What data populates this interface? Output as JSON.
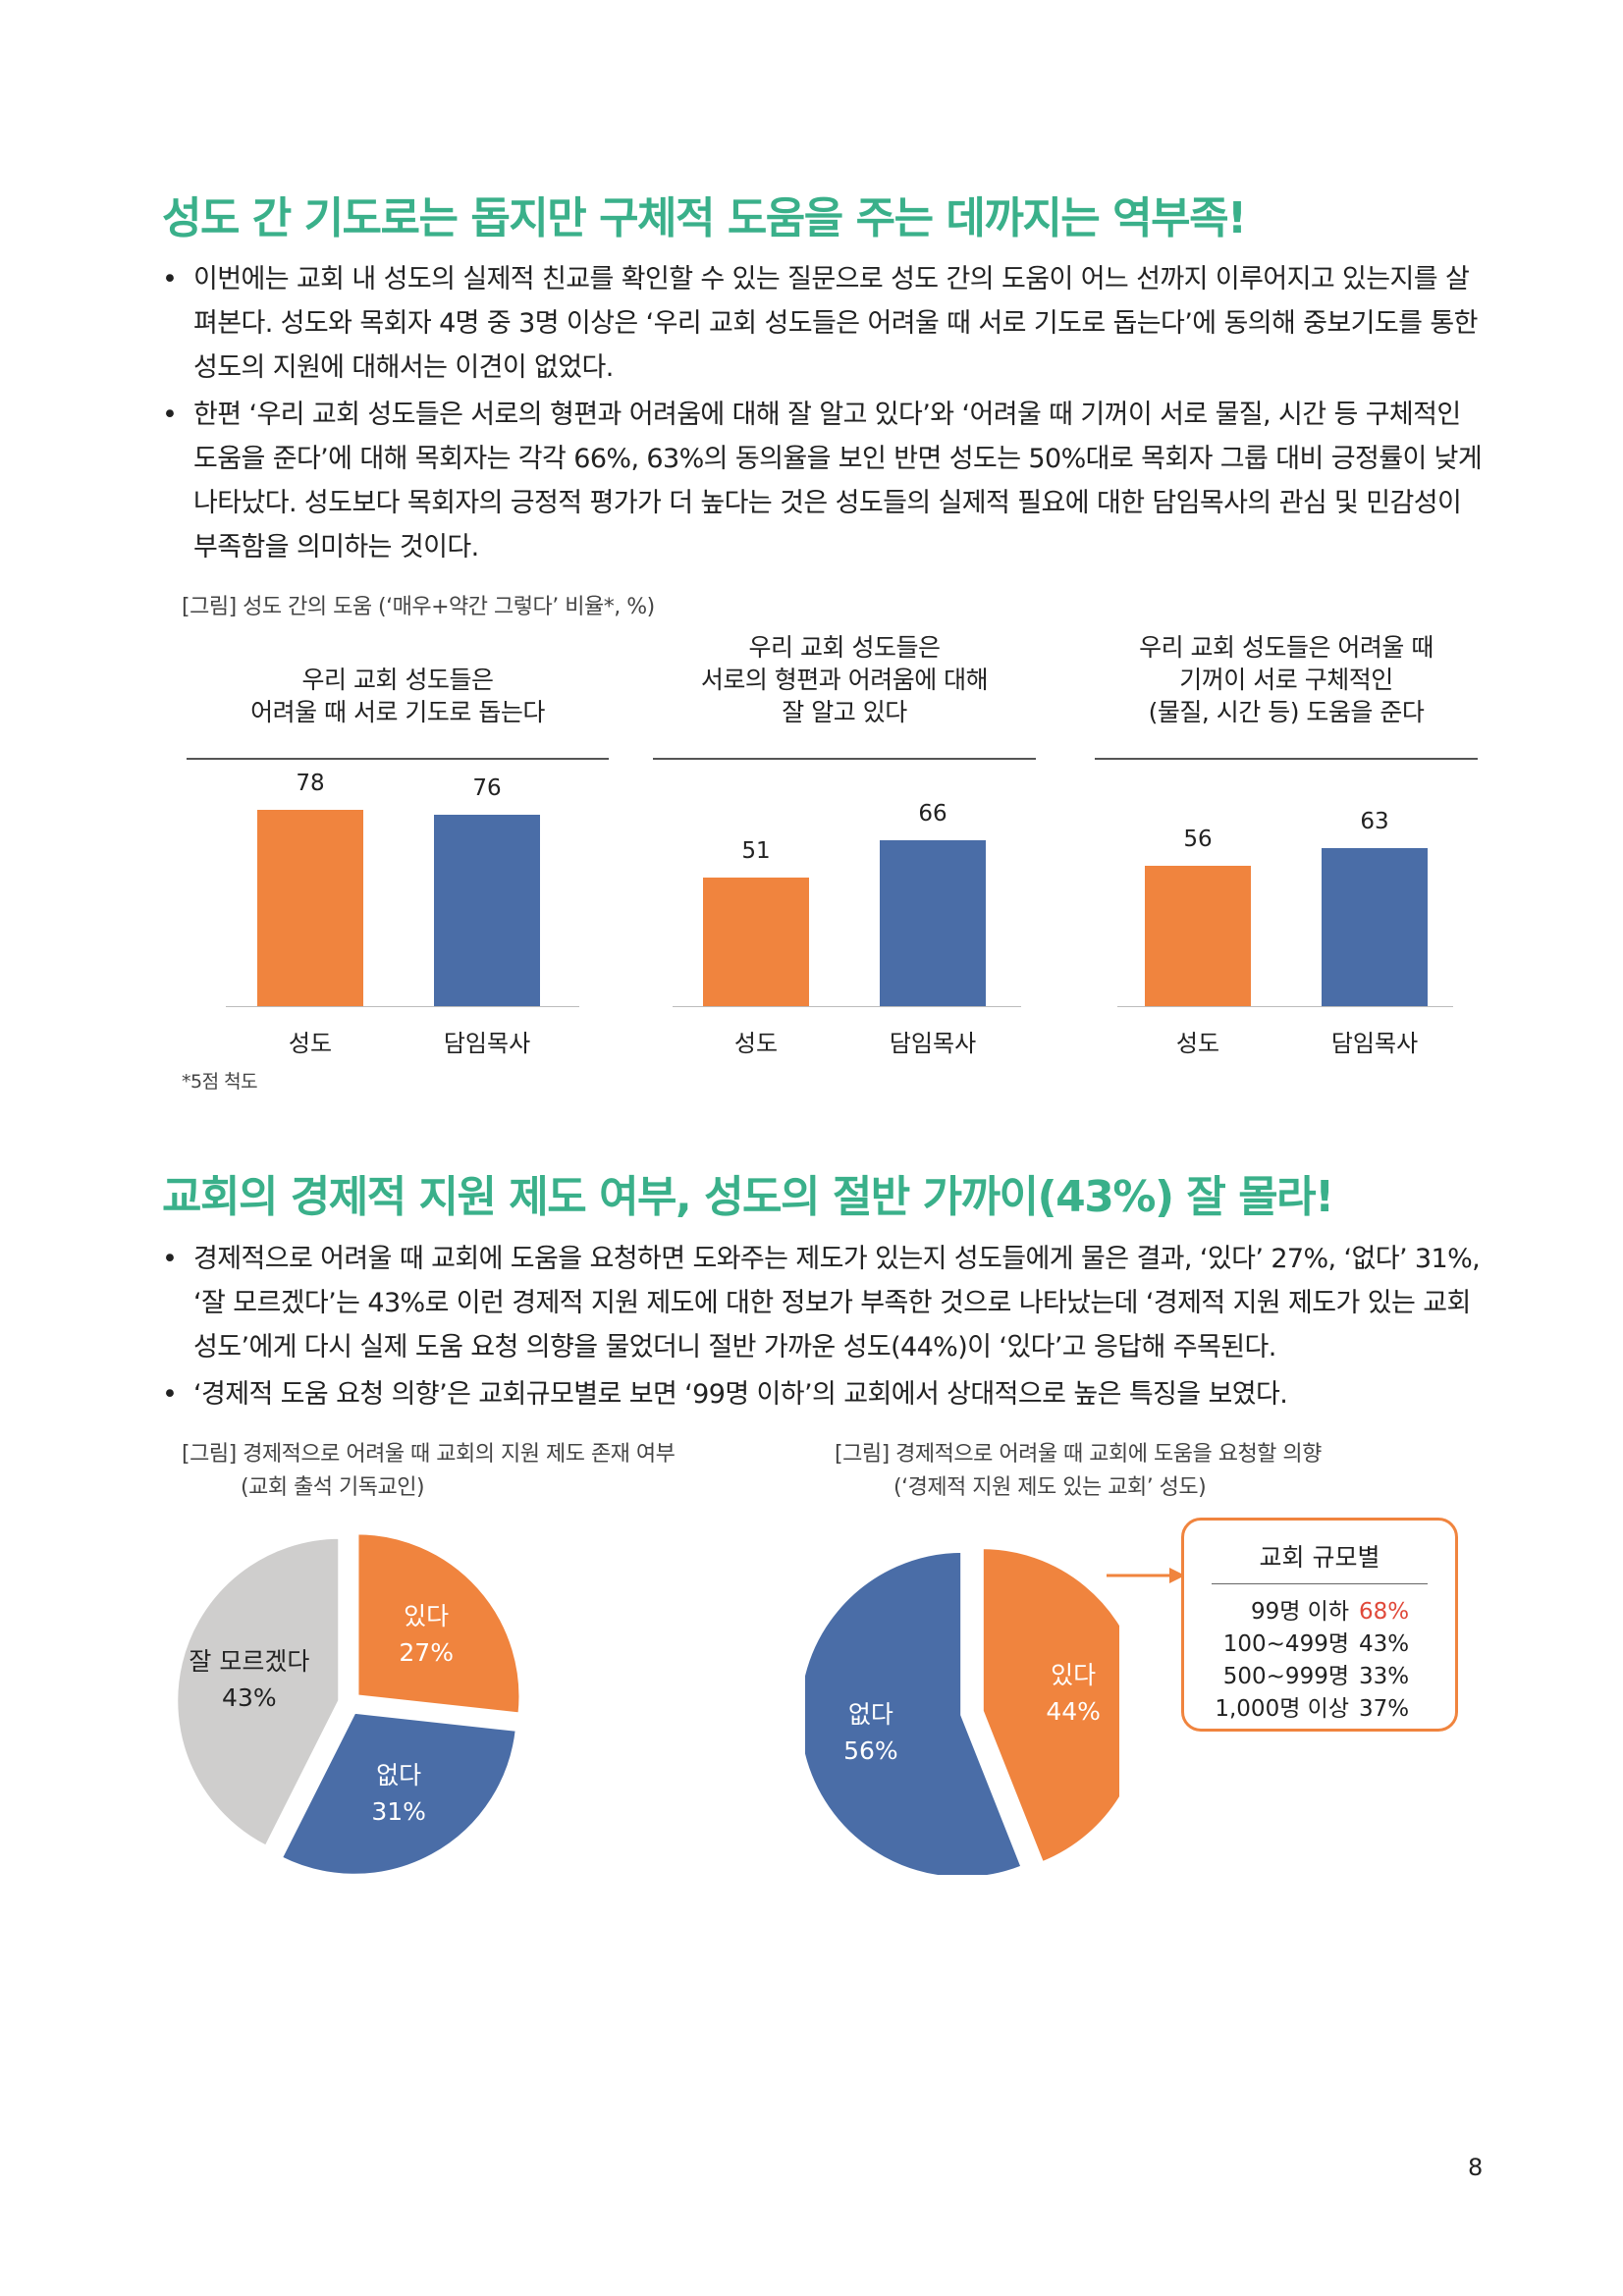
{
  "section1": {
    "heading": "성도 간 기도로는 돕지만 구체적 도움을 주는 데까지는 역부족!",
    "bullets": [
      "이번에는 교회 내 성도의 실제적 친교를 확인할 수 있는 질문으로 성도 간의 도움이 어느 선까지 이루어지고 있는지를 살펴본다. 성도와 목회자 4명 중 3명 이상은 ‘우리 교회 성도들은 어려울 때 서로 기도로 돕는다’에 동의해 중보기도를 통한 성도의 지원에 대해서는 이견이 없었다.",
      "한편 ‘우리 교회 성도들은 서로의 형편과 어려움에 대해 잘 알고 있다’와 ‘어려울 때 기꺼이 서로 물질, 시간 등 구체적인 도움을 준다’에 대해 목회자는 각각 66%, 63%의 동의율을 보인 반면 성도는 50%대로 목회자 그룹 대비 긍정률이 낮게 나타났다. 성도보다 목회자의 긍정적 평가가 더 높다는 것은 성도들의 실제적 필요에 대한 담임목사의 관심 및 민감성이 부족함을 의미하는 것이다."
    ],
    "figure_caption": "[그림] 성도 간의 도움 (‘매우+약간 그렇다’ 비율*, %)",
    "footnote": "*5점 척도"
  },
  "section2": {
    "heading": "교회의 경제적 지원 제도 여부, 성도의 절반 가까이(43%) 잘 몰라!",
    "bullets": [
      "경제적으로 어려울 때 교회에 도움을 요청하면 도와주는 제도가 있는지 성도들에게 물은 결과, ‘있다’ 27%, ‘없다’ 31%, ‘잘 모르겠다’는 43%로 이런 경제적 지원 제도에 대한 정보가 부족한 것으로 나타났는데 ‘경제적 지원 제도가 있는 교회 성도’에게 다시 실제 도움 요청 의향을 물었더니 절반 가까운 성도(44%)이 ‘있다’고 응답해 주목된다.",
      "‘경제적 도움 요청 의향’은 교회규모별로 보면 ‘99명 이하’의 교회에서 상대적으로 높은 특징을 보였다."
    ],
    "fig1_caption1": "[그림] 경제적으로 어려울 때 교회의 지원 제도 존재 여부",
    "fig1_caption2": "(교회 출석 기독교인)",
    "fig2_caption1": "[그림] 경제적으로 어려울 때 교회에 도움을 요청할 의향",
    "fig2_caption2": "(‘경제적 지원 제도 있는 교회’ 성도)",
    "callout": {
      "title": "교회 규모별",
      "rows": [
        {
          "size": "99명 이하",
          "pct": "68%",
          "highlight": true
        },
        {
          "size": "100~499명",
          "pct": "43%",
          "highlight": false
        },
        {
          "size": "500~999명",
          "pct": "33%",
          "highlight": false
        },
        {
          "size": "1,000명 이상",
          "pct": "37%",
          "highlight": false
        }
      ]
    }
  },
  "page_number": "8",
  "colors": {
    "orange": "#f0843e",
    "blue": "#4a6da7",
    "gray": "#cfcecd",
    "green": "#3ab08a",
    "red": "#e0493a"
  },
  "chart_data": [
    {
      "type": "bar",
      "title": "우리 교회 성도들은 어려울 때 서로 기도로 돕는다",
      "title_lines": [
        "우리 교회 성도들은",
        "어려울 때 서로 기도로 돕는다"
      ],
      "categories": [
        "성도",
        "담임목사"
      ],
      "values": [
        78,
        76
      ],
      "ylim": [
        0,
        100
      ]
    },
    {
      "type": "bar",
      "title": "우리 교회 성도들은 서로의 형편과 어려움에 대해 잘 알고 있다",
      "title_lines": [
        "우리 교회 성도들은",
        "서로의 형편과 어려움에 대해",
        "잘 알고 있다"
      ],
      "categories": [
        "성도",
        "담임목사"
      ],
      "values": [
        51,
        66
      ],
      "ylim": [
        0,
        100
      ]
    },
    {
      "type": "bar",
      "title": "우리 교회 성도들은 어려울 때 기꺼이 서로 구체적인 (물질, 시간 등) 도움을 준다",
      "title_lines": [
        "우리 교회 성도들은 어려울 때",
        "기꺼이 서로 구체적인",
        "(물질, 시간 등) 도움을 준다"
      ],
      "categories": [
        "성도",
        "담임목사"
      ],
      "values": [
        56,
        63
      ],
      "ylim": [
        0,
        100
      ]
    },
    {
      "type": "pie",
      "labels": [
        "있다",
        "없다",
        "잘 모르겠다"
      ],
      "values": [
        27,
        31,
        43
      ],
      "value_labels": [
        "27%",
        "31%",
        "43%"
      ]
    },
    {
      "type": "pie",
      "labels": [
        "있다",
        "없다"
      ],
      "values": [
        44,
        56
      ],
      "value_labels": [
        "44%",
        "56%"
      ]
    }
  ]
}
